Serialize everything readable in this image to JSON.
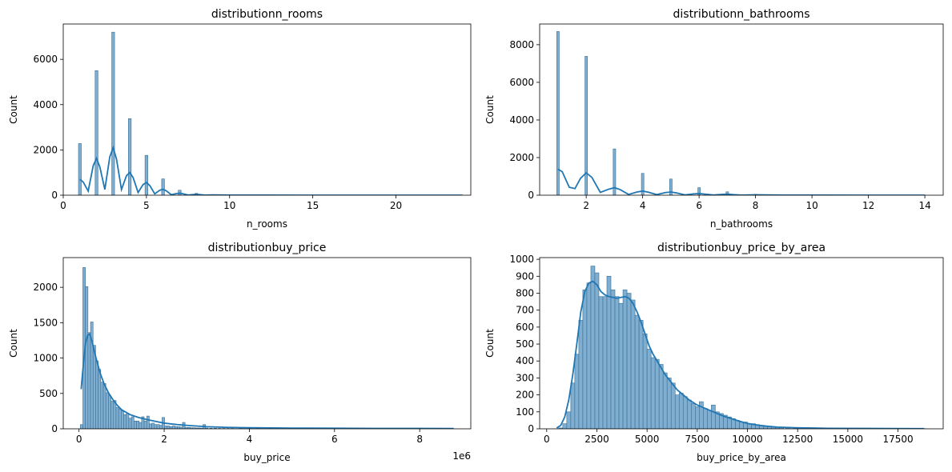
{
  "chart_data": [
    {
      "type": "bar",
      "title": "distributionn_rooms",
      "xlabel": "n_rooms",
      "ylabel": "Count",
      "xlim": [
        0,
        24.5
      ],
      "ylim": [
        0,
        7560
      ],
      "xticks": [
        0,
        5,
        10,
        15,
        20,
        25
      ],
      "yticks": [
        0,
        2000,
        4000,
        6000
      ],
      "x_offset_label": "",
      "bins": [
        {
          "x": 1,
          "y": 2280
        },
        {
          "x": 2,
          "y": 5500
        },
        {
          "x": 3,
          "y": 7200
        },
        {
          "x": 4,
          "y": 3380
        },
        {
          "x": 5,
          "y": 1760
        },
        {
          "x": 6,
          "y": 720
        },
        {
          "x": 7,
          "y": 220
        },
        {
          "x": 8,
          "y": 80
        },
        {
          "x": 9,
          "y": 25
        },
        {
          "x": 10,
          "y": 10
        }
      ],
      "bin_width": 0.17,
      "kde": [
        [
          1,
          700
        ],
        [
          1.2,
          580
        ],
        [
          1.5,
          180
        ],
        [
          1.8,
          1300
        ],
        [
          2,
          1630
        ],
        [
          2.2,
          1250
        ],
        [
          2.5,
          250
        ],
        [
          2.8,
          1700
        ],
        [
          3,
          2100
        ],
        [
          3.2,
          1600
        ],
        [
          3.5,
          250
        ],
        [
          3.8,
          860
        ],
        [
          4,
          1000
        ],
        [
          4.2,
          780
        ],
        [
          4.5,
          120
        ],
        [
          4.8,
          470
        ],
        [
          5,
          560
        ],
        [
          5.2,
          430
        ],
        [
          5.5,
          60
        ],
        [
          5.8,
          220
        ],
        [
          6,
          260
        ],
        [
          6.2,
          190
        ],
        [
          6.5,
          20
        ],
        [
          6.8,
          70
        ],
        [
          7,
          90
        ],
        [
          7.2,
          60
        ],
        [
          7.5,
          10
        ],
        [
          8,
          40
        ],
        [
          8.5,
          5
        ],
        [
          9,
          12
        ],
        [
          10,
          5
        ],
        [
          12,
          2
        ],
        [
          15,
          1
        ],
        [
          20,
          1
        ],
        [
          24,
          0
        ]
      ]
    },
    {
      "type": "bar",
      "title": "distributionn_bathrooms",
      "xlabel": "n_bathrooms",
      "ylabel": "Count",
      "xlim": [
        0.35,
        14.65
      ],
      "ylim": [
        0,
        9100
      ],
      "xticks": [
        2,
        4,
        6,
        8,
        10,
        12,
        14
      ],
      "yticks": [
        0,
        2000,
        4000,
        6000,
        8000
      ],
      "x_offset_label": "",
      "bins": [
        {
          "x": 1,
          "y": 8700
        },
        {
          "x": 2,
          "y": 7380
        },
        {
          "x": 3,
          "y": 2460
        },
        {
          "x": 4,
          "y": 1160
        },
        {
          "x": 5,
          "y": 860
        },
        {
          "x": 6,
          "y": 400
        },
        {
          "x": 7,
          "y": 180
        },
        {
          "x": 8,
          "y": 50
        },
        {
          "x": 9,
          "y": 15
        },
        {
          "x": 10,
          "y": 8
        }
      ],
      "bin_width": 0.09,
      "kde": [
        [
          1,
          1380
        ],
        [
          1.15,
          1250
        ],
        [
          1.4,
          420
        ],
        [
          1.6,
          350
        ],
        [
          1.8,
          900
        ],
        [
          2,
          1190
        ],
        [
          2.2,
          950
        ],
        [
          2.5,
          150
        ],
        [
          2.8,
          320
        ],
        [
          3,
          400
        ],
        [
          3.2,
          300
        ],
        [
          3.5,
          40
        ],
        [
          3.8,
          170
        ],
        [
          4,
          220
        ],
        [
          4.2,
          160
        ],
        [
          4.5,
          30
        ],
        [
          4.8,
          140
        ],
        [
          5,
          170
        ],
        [
          5.2,
          120
        ],
        [
          5.5,
          15
        ],
        [
          5.8,
          70
        ],
        [
          6,
          90
        ],
        [
          6.2,
          60
        ],
        [
          6.5,
          10
        ],
        [
          6.8,
          40
        ],
        [
          7,
          55
        ],
        [
          7.2,
          30
        ],
        [
          7.5,
          5
        ],
        [
          8,
          20
        ],
        [
          9,
          6
        ],
        [
          10,
          3
        ],
        [
          12,
          1
        ],
        [
          14,
          0
        ]
      ]
    },
    {
      "type": "bar",
      "title": "distributionbuy_price",
      "xlabel": "buy_price",
      "ylabel": "Count",
      "xlim": [
        -0.37,
        9.2
      ],
      "ylim": [
        0,
        2420
      ],
      "xticks": [
        0,
        2,
        4,
        6,
        8
      ],
      "yticks": [
        0,
        500,
        1000,
        1500,
        2000
      ],
      "x_offset_label": "1e6",
      "bins": [
        {
          "x": 0.06,
          "y": 60
        },
        {
          "x": 0.12,
          "y": 2280
        },
        {
          "x": 0.18,
          "y": 2010
        },
        {
          "x": 0.24,
          "y": 1360
        },
        {
          "x": 0.3,
          "y": 1510
        },
        {
          "x": 0.36,
          "y": 1180
        },
        {
          "x": 0.42,
          "y": 960
        },
        {
          "x": 0.48,
          "y": 840
        },
        {
          "x": 0.54,
          "y": 660
        },
        {
          "x": 0.6,
          "y": 640
        },
        {
          "x": 0.66,
          "y": 510
        },
        {
          "x": 0.72,
          "y": 470
        },
        {
          "x": 0.78,
          "y": 390
        },
        {
          "x": 0.84,
          "y": 400
        },
        {
          "x": 0.9,
          "y": 300
        },
        {
          "x": 0.96,
          "y": 280
        },
        {
          "x": 1.02,
          "y": 250
        },
        {
          "x": 1.08,
          "y": 200
        },
        {
          "x": 1.14,
          "y": 220
        },
        {
          "x": 1.2,
          "y": 150
        },
        {
          "x": 1.26,
          "y": 170
        },
        {
          "x": 1.32,
          "y": 110
        },
        {
          "x": 1.38,
          "y": 110
        },
        {
          "x": 1.44,
          "y": 90
        },
        {
          "x": 1.5,
          "y": 170
        },
        {
          "x": 1.56,
          "y": 110
        },
        {
          "x": 1.62,
          "y": 180
        },
        {
          "x": 1.68,
          "y": 70
        },
        {
          "x": 1.74,
          "y": 80
        },
        {
          "x": 1.8,
          "y": 60
        },
        {
          "x": 1.86,
          "y": 60
        },
        {
          "x": 1.92,
          "y": 50
        },
        {
          "x": 1.98,
          "y": 160
        },
        {
          "x": 2.04,
          "y": 40
        },
        {
          "x": 2.1,
          "y": 40
        },
        {
          "x": 2.16,
          "y": 30
        },
        {
          "x": 2.22,
          "y": 40
        },
        {
          "x": 2.28,
          "y": 30
        },
        {
          "x": 2.34,
          "y": 30
        },
        {
          "x": 2.4,
          "y": 25
        },
        {
          "x": 2.46,
          "y": 90
        },
        {
          "x": 2.52,
          "y": 20
        },
        {
          "x": 2.58,
          "y": 20
        },
        {
          "x": 2.64,
          "y": 15
        },
        {
          "x": 2.7,
          "y": 15
        },
        {
          "x": 2.76,
          "y": 12
        },
        {
          "x": 2.82,
          "y": 12
        },
        {
          "x": 2.88,
          "y": 10
        },
        {
          "x": 2.94,
          "y": 60
        },
        {
          "x": 3.0,
          "y": 10
        },
        {
          "x": 3.1,
          "y": 8
        },
        {
          "x": 3.2,
          "y": 8
        },
        {
          "x": 3.3,
          "y": 6
        },
        {
          "x": 3.4,
          "y": 6
        },
        {
          "x": 3.5,
          "y": 5
        },
        {
          "x": 3.6,
          "y": 5
        },
        {
          "x": 3.8,
          "y": 5
        },
        {
          "x": 4.0,
          "y": 4
        },
        {
          "x": 4.2,
          "y": 4
        },
        {
          "x": 4.5,
          "y": 3
        },
        {
          "x": 5.0,
          "y": 3
        },
        {
          "x": 5.5,
          "y": 2
        },
        {
          "x": 6.0,
          "y": 2
        },
        {
          "x": 7.0,
          "y": 1
        },
        {
          "x": 8.0,
          "y": 1
        },
        {
          "x": 8.7,
          "y": 1
        }
      ],
      "bin_width": 0.06,
      "kde": [
        [
          0.05,
          560
        ],
        [
          0.1,
          900
        ],
        [
          0.15,
          1200
        ],
        [
          0.2,
          1320
        ],
        [
          0.25,
          1340
        ],
        [
          0.3,
          1250
        ],
        [
          0.4,
          1000
        ],
        [
          0.5,
          780
        ],
        [
          0.6,
          620
        ],
        [
          0.7,
          500
        ],
        [
          0.8,
          410
        ],
        [
          0.9,
          330
        ],
        [
          1.0,
          270
        ],
        [
          1.2,
          200
        ],
        [
          1.4,
          160
        ],
        [
          1.6,
          130
        ],
        [
          1.8,
          105
        ],
        [
          2.0,
          80
        ],
        [
          2.3,
          60
        ],
        [
          2.6,
          45
        ],
        [
          3.0,
          30
        ],
        [
          3.5,
          20
        ],
        [
          4.0,
          15
        ],
        [
          5.0,
          10
        ],
        [
          6.0,
          8
        ],
        [
          7.0,
          6
        ],
        [
          8.0,
          5
        ],
        [
          8.8,
          4
        ]
      ]
    },
    {
      "type": "bar",
      "title": "distributionbuy_price_by_area",
      "xlabel": "buy_price_by_area",
      "ylabel": "Count",
      "xlim": [
        -350,
        19750
      ],
      "ylim": [
        0,
        1010
      ],
      "xticks": [
        0,
        2500,
        5000,
        7500,
        10000,
        12500,
        15000,
        17500
      ],
      "yticks": [
        0,
        100,
        200,
        300,
        400,
        500,
        600,
        700,
        800,
        900,
        1000
      ],
      "x_offset_label": "",
      "bins": [
        {
          "x": 700,
          "y": 5
        },
        {
          "x": 900,
          "y": 30
        },
        {
          "x": 1100,
          "y": 100
        },
        {
          "x": 1300,
          "y": 270
        },
        {
          "x": 1500,
          "y": 440
        },
        {
          "x": 1700,
          "y": 640
        },
        {
          "x": 1900,
          "y": 820
        },
        {
          "x": 2100,
          "y": 860
        },
        {
          "x": 2300,
          "y": 960
        },
        {
          "x": 2500,
          "y": 920
        },
        {
          "x": 2700,
          "y": 780
        },
        {
          "x": 2900,
          "y": 780
        },
        {
          "x": 3100,
          "y": 900
        },
        {
          "x": 3300,
          "y": 820
        },
        {
          "x": 3500,
          "y": 780
        },
        {
          "x": 3700,
          "y": 740
        },
        {
          "x": 3900,
          "y": 820
        },
        {
          "x": 4100,
          "y": 800
        },
        {
          "x": 4300,
          "y": 760
        },
        {
          "x": 4500,
          "y": 670
        },
        {
          "x": 4700,
          "y": 640
        },
        {
          "x": 4900,
          "y": 560
        },
        {
          "x": 5100,
          "y": 470
        },
        {
          "x": 5300,
          "y": 420
        },
        {
          "x": 5500,
          "y": 410
        },
        {
          "x": 5700,
          "y": 380
        },
        {
          "x": 5900,
          "y": 330
        },
        {
          "x": 6100,
          "y": 300
        },
        {
          "x": 6300,
          "y": 270
        },
        {
          "x": 6500,
          "y": 200
        },
        {
          "x": 6700,
          "y": 210
        },
        {
          "x": 6900,
          "y": 190
        },
        {
          "x": 7100,
          "y": 170
        },
        {
          "x": 7300,
          "y": 150
        },
        {
          "x": 7500,
          "y": 130
        },
        {
          "x": 7700,
          "y": 160
        },
        {
          "x": 7900,
          "y": 120
        },
        {
          "x": 8100,
          "y": 110
        },
        {
          "x": 8300,
          "y": 140
        },
        {
          "x": 8500,
          "y": 100
        },
        {
          "x": 8700,
          "y": 90
        },
        {
          "x": 8900,
          "y": 80
        },
        {
          "x": 9100,
          "y": 70
        },
        {
          "x": 9300,
          "y": 60
        },
        {
          "x": 9500,
          "y": 50
        },
        {
          "x": 9700,
          "y": 40
        },
        {
          "x": 9900,
          "y": 40
        },
        {
          "x": 10100,
          "y": 30
        },
        {
          "x": 10300,
          "y": 30
        },
        {
          "x": 10500,
          "y": 25
        },
        {
          "x": 10700,
          "y": 20
        },
        {
          "x": 10900,
          "y": 15
        },
        {
          "x": 11100,
          "y": 15
        },
        {
          "x": 11300,
          "y": 12
        },
        {
          "x": 11500,
          "y": 10
        },
        {
          "x": 11700,
          "y": 10
        },
        {
          "x": 12000,
          "y": 8
        },
        {
          "x": 12400,
          "y": 6
        },
        {
          "x": 12800,
          "y": 5
        },
        {
          "x": 13200,
          "y": 4
        },
        {
          "x": 13600,
          "y": 3
        },
        {
          "x": 14000,
          "y": 3
        },
        {
          "x": 14500,
          "y": 2
        },
        {
          "x": 15000,
          "y": 2
        },
        {
          "x": 16000,
          "y": 1
        },
        {
          "x": 17000,
          "y": 1
        },
        {
          "x": 18000,
          "y": 1
        },
        {
          "x": 18800,
          "y": 1
        }
      ],
      "bin_width": 200,
      "kde": [
        [
          500,
          5
        ],
        [
          700,
          20
        ],
        [
          900,
          70
        ],
        [
          1100,
          170
        ],
        [
          1300,
          320
        ],
        [
          1500,
          500
        ],
        [
          1700,
          690
        ],
        [
          1900,
          810
        ],
        [
          2100,
          860
        ],
        [
          2300,
          870
        ],
        [
          2500,
          850
        ],
        [
          2700,
          810
        ],
        [
          2900,
          790
        ],
        [
          3100,
          780
        ],
        [
          3300,
          775
        ],
        [
          3500,
          770
        ],
        [
          3700,
          775
        ],
        [
          3900,
          780
        ],
        [
          4100,
          770
        ],
        [
          4300,
          740
        ],
        [
          4500,
          690
        ],
        [
          4700,
          630
        ],
        [
          4900,
          560
        ],
        [
          5100,
          490
        ],
        [
          5300,
          440
        ],
        [
          5500,
          400
        ],
        [
          5700,
          360
        ],
        [
          5900,
          320
        ],
        [
          6100,
          290
        ],
        [
          6300,
          260
        ],
        [
          6500,
          230
        ],
        [
          6700,
          210
        ],
        [
          6900,
          190
        ],
        [
          7100,
          170
        ],
        [
          7300,
          155
        ],
        [
          7500,
          140
        ],
        [
          7700,
          130
        ],
        [
          7900,
          120
        ],
        [
          8100,
          110
        ],
        [
          8300,
          100
        ],
        [
          8500,
          90
        ],
        [
          8800,
          75
        ],
        [
          9200,
          60
        ],
        [
          9600,
          45
        ],
        [
          10000,
          32
        ],
        [
          10500,
          22
        ],
        [
          11000,
          15
        ],
        [
          11500,
          10
        ],
        [
          12500,
          6
        ],
        [
          14000,
          3
        ],
        [
          16000,
          2
        ],
        [
          18800,
          1
        ]
      ]
    }
  ]
}
